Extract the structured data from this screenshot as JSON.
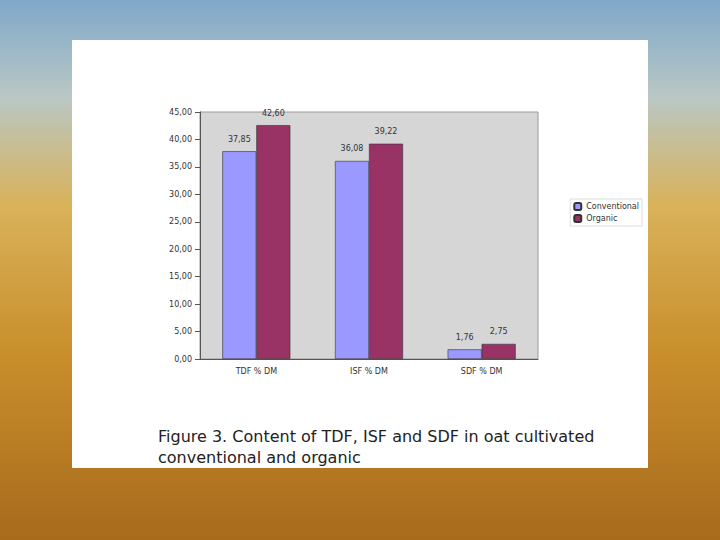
{
  "chart_data": {
    "type": "bar",
    "title": "Figure 3. Content of TDF, ISF and SDF in oat cultivated conventional and organic",
    "categories": [
      "TDF % DM",
      "ISF % DM",
      "SDF % DM"
    ],
    "series": [
      {
        "name": "Conventional",
        "color": "#9999ff",
        "values": [
          37.85,
          36.08,
          1.76
        ],
        "value_labels": [
          "37,85",
          "36,08",
          "1,76"
        ]
      },
      {
        "name": "Organic",
        "color": "#993366",
        "values": [
          42.6,
          39.22,
          2.75
        ],
        "value_labels": [
          "42,60",
          "39,22",
          "2,75"
        ]
      }
    ],
    "ylim": [
      0,
      45
    ],
    "yticks": [
      {
        "value": 0,
        "label": "0,00"
      },
      {
        "value": 5,
        "label": "5,00"
      },
      {
        "value": 10,
        "label": "10,00"
      },
      {
        "value": 15,
        "label": "15,00"
      },
      {
        "value": 20,
        "label": "20,00"
      },
      {
        "value": 25,
        "label": "25,00"
      },
      {
        "value": 30,
        "label": "30,00"
      },
      {
        "value": 35,
        "label": "35,00"
      },
      {
        "value": 40,
        "label": "40,00"
      },
      {
        "value": 45,
        "label": "45,00"
      }
    ],
    "grid": false,
    "legend": "right",
    "data_labels": true
  }
}
